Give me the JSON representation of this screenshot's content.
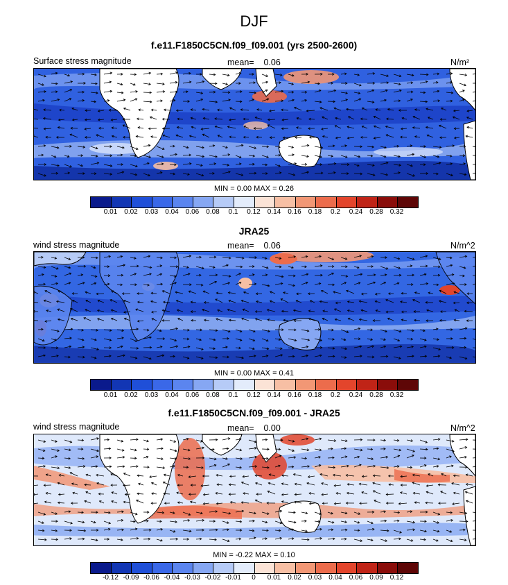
{
  "title": "DJF",
  "panels": [
    {
      "title": "f.e11.F1850C5CN.f09_f09.001 (yrs 2500-2600)",
      "left_label": "Surface stress magnitude",
      "mean_label": "mean=",
      "mean_value": "0.06",
      "units": "N/m²",
      "minmax": "MIN =  0.00 MAX =  0.26",
      "colorbar": {
        "ticks": [
          "0.01",
          "0.02",
          "0.03",
          "0.04",
          "0.06",
          "0.08",
          "0.1",
          "0.12",
          "0.14",
          "0.16",
          "0.18",
          "0.2",
          "0.24",
          "0.28",
          "0.32"
        ],
        "colors": [
          "#0a1a8c",
          "#1236b4",
          "#1f4fd8",
          "#3a68e8",
          "#5b85ef",
          "#86a7f3",
          "#b6cbf7",
          "#e3ecfb",
          "#fbe3d6",
          "#f7bfa4",
          "#f29775",
          "#ec6c4c",
          "#e3452c",
          "#c02417",
          "#8a0d0a",
          "#5e0606"
        ]
      }
    },
    {
      "title": "JRA25",
      "left_label": "wind stress magnitude",
      "mean_label": "mean=",
      "mean_value": "0.06",
      "units": "N/m^2",
      "minmax": "MIN =  0.00 MAX =  0.41",
      "colorbar": {
        "ticks": [
          "0.01",
          "0.02",
          "0.03",
          "0.04",
          "0.06",
          "0.08",
          "0.1",
          "0.12",
          "0.14",
          "0.16",
          "0.18",
          "0.2",
          "0.24",
          "0.28",
          "0.32"
        ],
        "colors": [
          "#0a1a8c",
          "#1236b4",
          "#1f4fd8",
          "#3a68e8",
          "#5b85ef",
          "#86a7f3",
          "#b6cbf7",
          "#e3ecfb",
          "#fbe3d6",
          "#f7bfa4",
          "#f29775",
          "#ec6c4c",
          "#e3452c",
          "#c02417",
          "#8a0d0a",
          "#5e0606"
        ]
      }
    },
    {
      "title": "f.e11.F1850C5CN.f09_f09.001 - JRA25",
      "left_label": "wind stress magnitude",
      "mean_label": "mean=",
      "mean_value": "0.00",
      "units": "N/m^2",
      "minmax": "MIN = -0.22 MAX =  0.10",
      "colorbar": {
        "ticks": [
          "-0.12",
          "-0.09",
          "-0.06",
          "-0.04",
          "-0.03",
          "-0.02",
          "-0.01",
          "0",
          "0.01",
          "0.02",
          "0.03",
          "0.04",
          "0.06",
          "0.09",
          "0.12"
        ],
        "colors": [
          "#0a1a8c",
          "#1236b4",
          "#1f4fd8",
          "#3a68e8",
          "#5b85ef",
          "#86a7f3",
          "#b6cbf7",
          "#e3ecfb",
          "#fbe3d6",
          "#f7bfa4",
          "#f29775",
          "#ec6c4c",
          "#e3452c",
          "#c02417",
          "#8a0d0a",
          "#5e0606"
        ]
      }
    }
  ]
}
